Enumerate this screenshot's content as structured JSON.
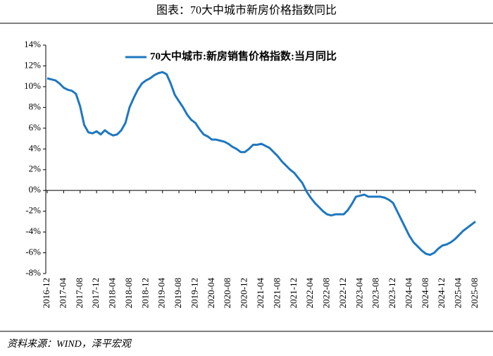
{
  "chart_data": {
    "type": "line",
    "title": "图表：70大中城市新房价格指数同比",
    "source": "资料来源：WIND，泽平宏观",
    "categories": [
      "2016-12",
      null,
      null,
      null,
      "2017-04",
      null,
      null,
      null,
      "2017-08",
      null,
      null,
      null,
      "2017-12",
      null,
      null,
      null,
      "2018-04",
      null,
      null,
      null,
      "2018-08",
      null,
      null,
      null,
      "2018-12",
      null,
      null,
      null,
      "2019-04",
      null,
      null,
      null,
      "2019-08",
      null,
      null,
      null,
      "2019-12",
      null,
      null,
      null,
      "2020-04",
      null,
      null,
      null,
      "2020-08",
      null,
      null,
      null,
      "2020-12",
      null,
      null,
      null,
      "2021-04",
      null,
      null,
      null,
      "2021-08",
      null,
      null,
      null,
      "2021-12",
      null,
      null,
      null,
      "2022-04",
      null,
      null,
      null,
      "2022-08",
      null,
      null,
      null,
      "2022-12",
      null,
      null,
      null,
      "2023-04",
      null,
      null,
      null,
      "2023-08",
      null,
      null,
      null,
      "2023-12",
      null,
      null,
      null,
      "2024-04",
      null,
      null,
      null,
      "2024-08",
      null,
      null,
      null,
      "2024-12",
      null,
      null,
      null,
      "2025-04",
      null,
      null,
      null,
      "2025-08"
    ],
    "series": [
      {
        "name": "70大中城市:新房销售价格指数:当月同比",
        "color": "#1f77c0",
        "values": [
          10.8,
          10.7,
          10.6,
          10.3,
          9.9,
          9.7,
          9.6,
          9.3,
          8.1,
          6.3,
          5.6,
          5.5,
          5.7,
          5.4,
          5.8,
          5.5,
          5.3,
          5.4,
          5.8,
          6.5,
          8.0,
          8.9,
          9.7,
          10.3,
          10.6,
          10.8,
          11.1,
          11.3,
          11.4,
          11.2,
          10.3,
          9.2,
          8.6,
          8.0,
          7.3,
          6.8,
          6.5,
          5.9,
          5.4,
          5.2,
          4.9,
          4.9,
          4.8,
          4.7,
          4.5,
          4.2,
          4.0,
          3.7,
          3.7,
          4.0,
          4.4,
          4.4,
          4.5,
          4.3,
          4.1,
          3.7,
          3.3,
          2.8,
          2.4,
          2.0,
          1.7,
          1.2,
          0.7,
          -0.1,
          -0.7,
          -1.2,
          -1.6,
          -2.0,
          -2.3,
          -2.4,
          -2.3,
          -2.3,
          -2.3,
          -1.9,
          -1.3,
          -0.6,
          -0.5,
          -0.4,
          -0.6,
          -0.6,
          -0.6,
          -0.6,
          -0.7,
          -0.9,
          -1.2,
          -2.0,
          -2.8,
          -3.6,
          -4.4,
          -5.0,
          -5.4,
          -5.8,
          -6.1,
          -6.2,
          -6.0,
          -5.6,
          -5.3,
          -5.2,
          -5.0,
          -4.7,
          -4.3,
          -3.9,
          -3.6,
          -3.3,
          -3.0
        ]
      }
    ],
    "ylim": [
      -8,
      14
    ],
    "yticks": [
      {
        "value": -8,
        "label": "-8%"
      },
      {
        "value": -6,
        "label": "-6%"
      },
      {
        "value": -4,
        "label": "-4%"
      },
      {
        "value": -2,
        "label": "-2%"
      },
      {
        "value": 0,
        "label": "0%"
      },
      {
        "value": 2,
        "label": "2%"
      },
      {
        "value": 4,
        "label": "4%"
      },
      {
        "value": 6,
        "label": "6%"
      },
      {
        "value": 8,
        "label": "8%"
      },
      {
        "value": 10,
        "label": "10%"
      },
      {
        "value": 12,
        "label": "12%"
      },
      {
        "value": 14,
        "label": "14%"
      }
    ],
    "legend": "top"
  }
}
